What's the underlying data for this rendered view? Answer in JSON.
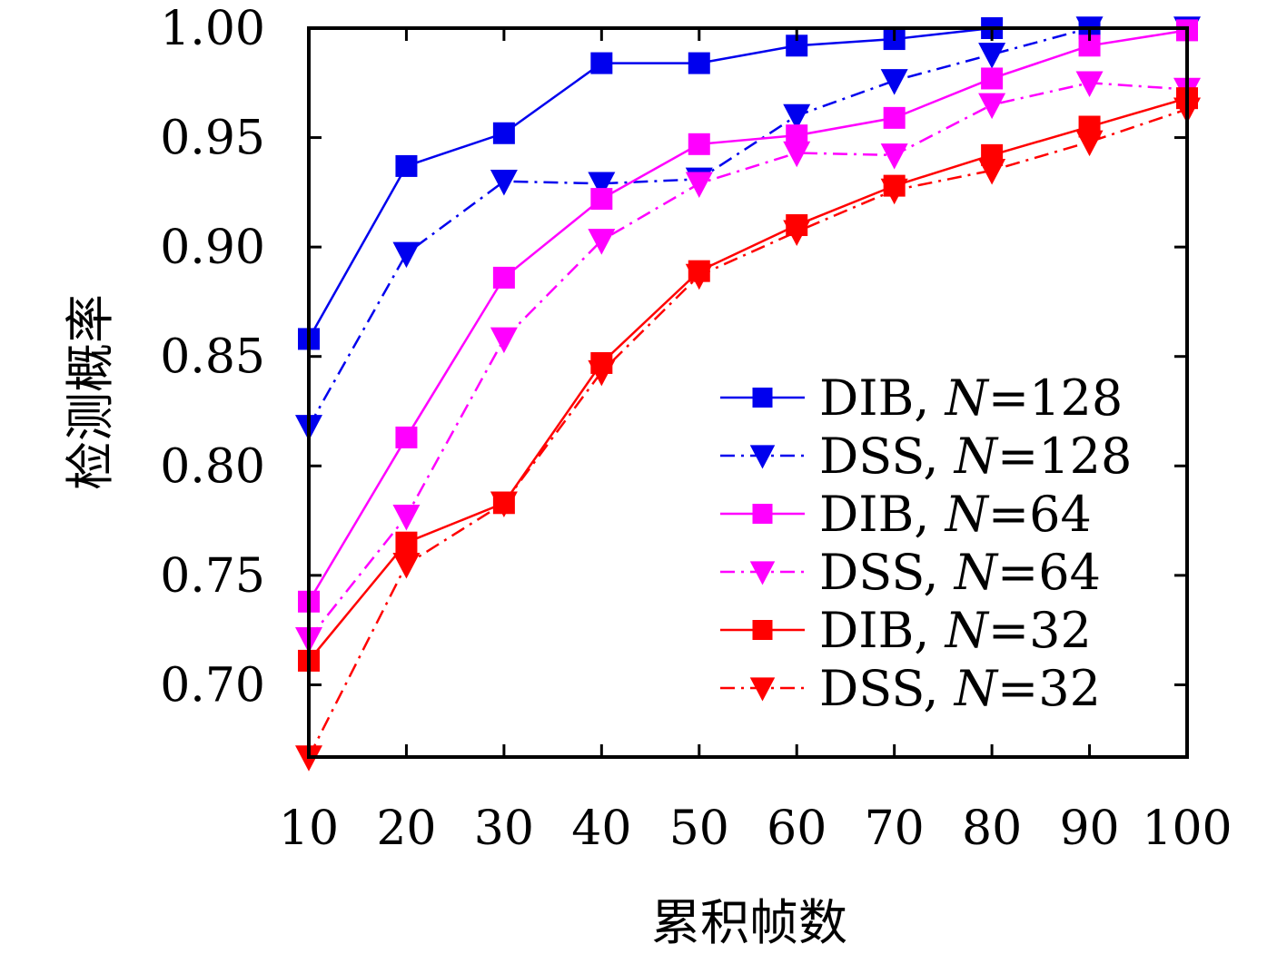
{
  "chart_data": {
    "type": "line",
    "title": "",
    "xlabel": "累积帧数",
    "ylabel": "检测概率",
    "x": [
      10,
      20,
      30,
      40,
      50,
      60,
      70,
      80,
      90,
      100
    ],
    "xticks": [
      "10",
      "20",
      "30",
      "40",
      "50",
      "60",
      "70",
      "80",
      "90",
      "100"
    ],
    "yticks": [
      "0.70",
      "0.75",
      "0.80",
      "0.85",
      "0.90",
      "0.95",
      "1.00"
    ],
    "xlim": [
      10,
      100
    ],
    "ylim": [
      0.667,
      1.0
    ],
    "grid": false,
    "legend_position": "lower-right",
    "series": [
      {
        "name": "DIB, N=128",
        "label_prefix": "DIB, ",
        "label_var": "N",
        "label_suffix": "=128",
        "color": "#0000ee",
        "marker": "square",
        "line": "solid",
        "values": [
          0.858,
          0.937,
          0.952,
          0.984,
          0.984,
          0.992,
          0.995,
          1.0,
          1.0,
          1.0
        ]
      },
      {
        "name": "DSS, N=128",
        "label_prefix": "DSS, ",
        "label_var": "N",
        "label_suffix": "=128",
        "color": "#0000ee",
        "marker": "triangle-down",
        "line": "dashdot",
        "values": [
          0.818,
          0.897,
          0.93,
          0.929,
          0.931,
          0.96,
          0.976,
          0.988,
          1.0,
          1.0
        ]
      },
      {
        "name": "DIB, N=64",
        "label_prefix": "DIB, ",
        "label_var": "N",
        "label_suffix": "=64",
        "color": "#ff00ff",
        "marker": "square",
        "line": "solid",
        "values": [
          0.738,
          0.813,
          0.886,
          0.922,
          0.947,
          0.951,
          0.959,
          0.977,
          0.992,
          0.999
        ]
      },
      {
        "name": "DSS, N=64",
        "label_prefix": "DSS, ",
        "label_var": "N",
        "label_suffix": "=64",
        "color": "#ff00ff",
        "marker": "triangle-down",
        "line": "dashdot",
        "values": [
          0.721,
          0.777,
          0.858,
          0.903,
          0.929,
          0.943,
          0.942,
          0.965,
          0.975,
          0.972
        ]
      },
      {
        "name": "DIB, N=32",
        "label_prefix": "DIB, ",
        "label_var": "N",
        "label_suffix": "=32",
        "color": "#ff0000",
        "marker": "square",
        "line": "solid",
        "values": [
          0.711,
          0.765,
          0.783,
          0.847,
          0.889,
          0.91,
          0.928,
          0.942,
          0.955,
          0.968
        ]
      },
      {
        "name": "DSS, N=32",
        "label_prefix": "DSS, ",
        "label_var": "N",
        "label_suffix": "=32",
        "color": "#ff0000",
        "marker": "triangle-down",
        "line": "dashdot",
        "values": [
          0.667,
          0.755,
          0.783,
          0.843,
          0.887,
          0.907,
          0.926,
          0.935,
          0.948,
          0.963
        ]
      }
    ]
  }
}
